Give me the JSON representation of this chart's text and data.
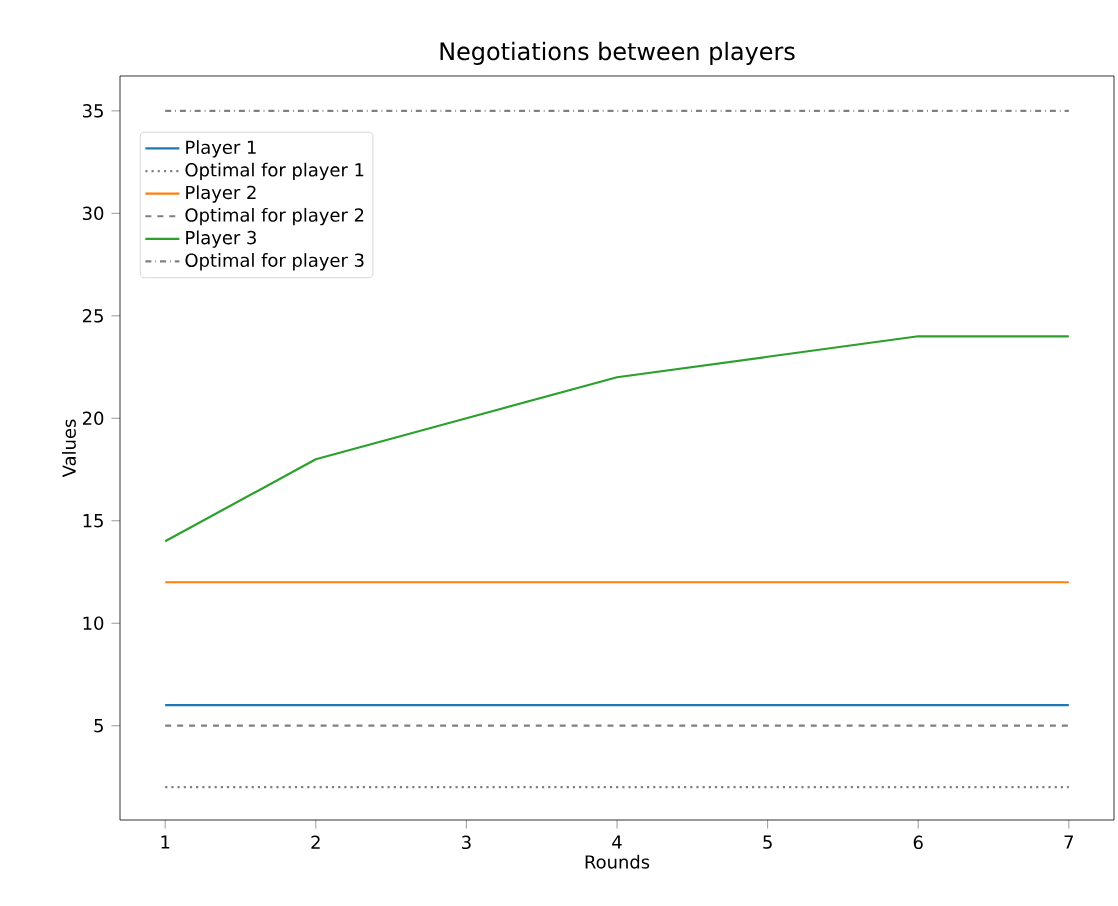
{
  "chart_data": {
    "type": "line",
    "title": "Negotiations between players",
    "xlabel": "Rounds",
    "ylabel": "Values",
    "x": [
      1,
      2,
      3,
      4,
      5,
      6,
      7
    ],
    "series": [
      {
        "name": "Player 1",
        "color": "#1f77b4",
        "line_style": "solid",
        "values": [
          6,
          6,
          6,
          6,
          6,
          6,
          6
        ]
      },
      {
        "name": "Optimal for player 1",
        "color": "#808080",
        "line_style": "dotted",
        "values": [
          2,
          2,
          2,
          2,
          2,
          2,
          2
        ]
      },
      {
        "name": "Player 2",
        "color": "#ff7f0e",
        "line_style": "solid",
        "values": [
          12,
          12,
          12,
          12,
          12,
          12,
          12
        ]
      },
      {
        "name": "Optimal for player 2",
        "color": "#808080",
        "line_style": "dashed",
        "values": [
          5,
          5,
          5,
          5,
          5,
          5,
          5
        ]
      },
      {
        "name": "Player 3",
        "color": "#2ca02c",
        "line_style": "solid",
        "values": [
          14,
          18,
          20,
          22,
          23,
          24,
          24
        ]
      },
      {
        "name": "Optimal for player 3",
        "color": "#808080",
        "line_style": "dashdot",
        "values": [
          35,
          35,
          35,
          35,
          35,
          35,
          35
        ]
      }
    ],
    "xlim": [
      0.7,
      7.3
    ],
    "xticks": [
      1,
      2,
      3,
      4,
      5,
      6,
      7
    ],
    "ylim": [
      0.4,
      36.7
    ],
    "yticks": [
      5,
      10,
      15,
      20,
      25,
      30,
      35
    ],
    "legend": "top left",
    "marker": "none"
  }
}
